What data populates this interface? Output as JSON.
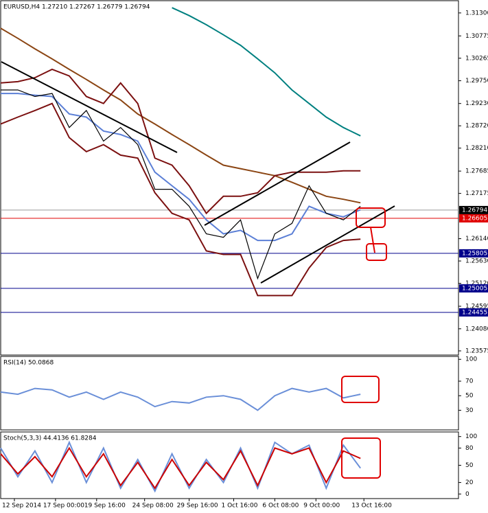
{
  "chart_data": [
    {
      "type": "line",
      "title": "EURUSD,H4  1.27210 1.27267 1.26779 1.26794",
      "x": [
        0,
        5,
        10,
        15,
        20,
        25,
        30,
        35,
        40,
        45,
        50,
        55,
        60,
        65,
        70,
        75,
        80,
        85,
        90,
        95,
        100,
        105
      ],
      "xlim": [
        0,
        133.6
      ],
      "ylim": [
        1.2348,
        1.3158
      ],
      "yticks": [
        {
          "value": 1.313,
          "label": "1.31300"
        },
        {
          "value": 1.30775,
          "label": "1.30775"
        },
        {
          "value": 1.30265,
          "label": "1.30265"
        },
        {
          "value": 1.2975,
          "label": "1.29750"
        },
        {
          "value": 1.2923,
          "label": "1.29230"
        },
        {
          "value": 1.2872,
          "label": "1.28720"
        },
        {
          "value": 1.2821,
          "label": "1.28210"
        },
        {
          "value": 1.27685,
          "label": "1.27685"
        },
        {
          "value": 1.27175,
          "label": "1.27175"
        },
        {
          "value": 1.2614,
          "label": "1.26140"
        },
        {
          "value": 1.2563,
          "label": "1.25630"
        },
        {
          "value": 1.2512,
          "label": "1.25120"
        },
        {
          "value": 1.24595,
          "label": "1.24595"
        },
        {
          "value": 1.2408,
          "label": "1.24080"
        },
        {
          "value": 1.23575,
          "label": "1.23575"
        }
      ],
      "levels": [
        {
          "value": 1.26794,
          "color": "#000000"
        },
        {
          "value": 1.26605,
          "color": "#e00000"
        },
        {
          "value": 1.25805,
          "color": "#00008b"
        },
        {
          "value": 1.25005,
          "color": "#00008b"
        },
        {
          "value": 1.24455,
          "color": "#00008b"
        }
      ],
      "series": [
        {
          "color": "#008080",
          "values": [
            null,
            null,
            null,
            null,
            null,
            null,
            null,
            null,
            null,
            null,
            1.3142,
            1.3124,
            1.3103,
            1.308,
            1.3056,
            1.3025,
            1.2993,
            1.2954,
            1.2923,
            1.2892,
            1.2868,
            1.2849
          ]
        },
        {
          "color": "#8b4513",
          "values": [
            1.3095,
            1.3072,
            1.3048,
            1.3025,
            1.3001,
            1.2978,
            1.2954,
            1.2931,
            1.2899,
            1.2876,
            1.2852,
            1.2829,
            1.2805,
            1.2782,
            1.2774,
            1.2766,
            1.2758,
            1.2743,
            1.2727,
            1.2711,
            1.2704,
            1.2696
          ]
        },
        {
          "color": "#7b1010",
          "values": [
            1.297,
            1.2973,
            1.2982,
            1.3001,
            1.2986,
            1.2939,
            1.2923,
            1.297,
            1.2923,
            1.2798,
            1.2782,
            1.2735,
            1.2672,
            1.2711,
            1.2711,
            1.2719,
            1.2758,
            1.2766,
            1.2766,
            1.2766,
            1.2769,
            1.2769
          ]
        },
        {
          "color": "#7b1010",
          "values": [
            1.2876,
            1.2892,
            1.2907,
            1.2923,
            1.2845,
            1.2813,
            1.2829,
            1.2805,
            1.2798,
            1.2719,
            1.2672,
            1.2657,
            1.2586,
            1.2578,
            1.2578,
            1.2484,
            1.2484,
            1.2484,
            1.2547,
            1.2594,
            1.261,
            1.2613
          ]
        },
        {
          "color": "#5b7fd6",
          "values": [
            1.2946,
            1.2946,
            1.2942,
            1.2939,
            1.2899,
            1.2892,
            1.286,
            1.2852,
            1.2837,
            1.2766,
            1.2735,
            1.2704,
            1.2657,
            1.2625,
            1.2633,
            1.261,
            1.261,
            1.2625,
            1.2688,
            1.2672,
            1.2664,
            1.268
          ]
        },
        {
          "color": "#000000",
          "values": [
            1.2954,
            1.2954,
            1.2939,
            1.2946,
            1.2868,
            1.2907,
            1.2837,
            1.2868,
            1.2829,
            1.2727,
            1.2727,
            1.2688,
            1.2625,
            1.2617,
            1.2657,
            1.2523,
            1.2625,
            1.2649,
            1.2735,
            1.2672,
            1.2657,
            1.2688
          ]
        }
      ]
    },
    {
      "type": "line",
      "title": "RSI(14) 50.0868",
      "x": [
        0,
        5,
        10,
        15,
        20,
        25,
        30,
        35,
        40,
        45,
        50,
        55,
        60,
        65,
        70,
        75,
        80,
        85,
        90,
        95,
        100,
        105
      ],
      "xlim": [
        0,
        133.6
      ],
      "ylim": [
        3,
        104
      ],
      "yticks": [
        100,
        70,
        50,
        30
      ],
      "series": [
        {
          "color": "#6a8fd8",
          "values": [
            55,
            52,
            60,
            58,
            48,
            55,
            45,
            55,
            48,
            35,
            42,
            40,
            48,
            50,
            45,
            30,
            50,
            60,
            55,
            60,
            47,
            52
          ]
        }
      ]
    },
    {
      "type": "line",
      "title": "Stoch(5,3,3) 44.4136 61.8284",
      "x": [
        0,
        5,
        10,
        15,
        20,
        25,
        30,
        35,
        40,
        45,
        50,
        55,
        60,
        65,
        70,
        75,
        80,
        85,
        90,
        95,
        100,
        105
      ],
      "xlim": [
        0,
        133.6
      ],
      "ylim": [
        -8,
        108
      ],
      "yticks": [
        100,
        80,
        50,
        20,
        0
      ],
      "xticks": [
        {
          "value": 4,
          "label": "12 Sep 2014"
        },
        {
          "value": 16,
          "label": "17 Sep 00:00"
        },
        {
          "value": 28,
          "label": "19 Sep 16:00"
        },
        {
          "value": 42,
          "label": "24 Sep 08:00"
        },
        {
          "value": 55,
          "label": "29 Sep 16:00"
        },
        {
          "value": 68,
          "label": "1 Oct 16:00"
        },
        {
          "value": 80,
          "label": "6 Oct 08:00"
        },
        {
          "value": 92,
          "label": "9 Oct 00:00"
        },
        {
          "value": 106,
          "label": "13 Oct 16:00"
        }
      ],
      "series": [
        {
          "color": "#6a8fd8",
          "values": [
            80,
            30,
            75,
            20,
            90,
            20,
            80,
            10,
            60,
            5,
            70,
            10,
            60,
            20,
            80,
            10,
            90,
            70,
            85,
            10,
            85,
            45
          ]
        },
        {
          "color": "#cc0000",
          "values": [
            70,
            35,
            65,
            30,
            80,
            30,
            70,
            15,
            55,
            10,
            60,
            15,
            55,
            25,
            75,
            15,
            80,
            70,
            80,
            20,
            75,
            62
          ]
        }
      ]
    }
  ]
}
